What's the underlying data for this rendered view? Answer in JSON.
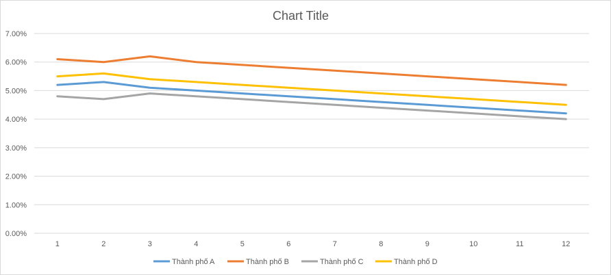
{
  "chart_data": {
    "type": "line",
    "title": "Chart Title",
    "xlabel": "",
    "ylabel": "",
    "categories": [
      "1",
      "2",
      "3",
      "4",
      "5",
      "6",
      "7",
      "8",
      "9",
      "10",
      "11",
      "12"
    ],
    "y_ticks": [
      "0.00%",
      "1.00%",
      "2.00%",
      "3.00%",
      "4.00%",
      "5.00%",
      "6.00%",
      "7.00%"
    ],
    "ylim": [
      0,
      0.07
    ],
    "grid": true,
    "legend_position": "bottom",
    "series": [
      {
        "name": "Thành phố A",
        "color": "#5b9bd5",
        "values": [
          0.052,
          0.053,
          0.051,
          0.05,
          0.049,
          0.048,
          0.047,
          0.046,
          0.045,
          0.044,
          0.043,
          0.042
        ]
      },
      {
        "name": "Thành phố B",
        "color": "#ed7d31",
        "values": [
          0.061,
          0.06,
          0.062,
          0.06,
          0.059,
          0.058,
          0.057,
          0.056,
          0.055,
          0.054,
          0.053,
          0.052
        ]
      },
      {
        "name": "Thành phố C",
        "color": "#a5a5a5",
        "values": [
          0.048,
          0.047,
          0.049,
          0.048,
          0.047,
          0.046,
          0.045,
          0.044,
          0.043,
          0.042,
          0.041,
          0.04
        ]
      },
      {
        "name": "Thành phố D",
        "color": "#ffc000",
        "values": [
          0.055,
          0.056,
          0.054,
          0.053,
          0.052,
          0.051,
          0.05,
          0.049,
          0.048,
          0.047,
          0.046,
          0.045
        ]
      }
    ]
  }
}
